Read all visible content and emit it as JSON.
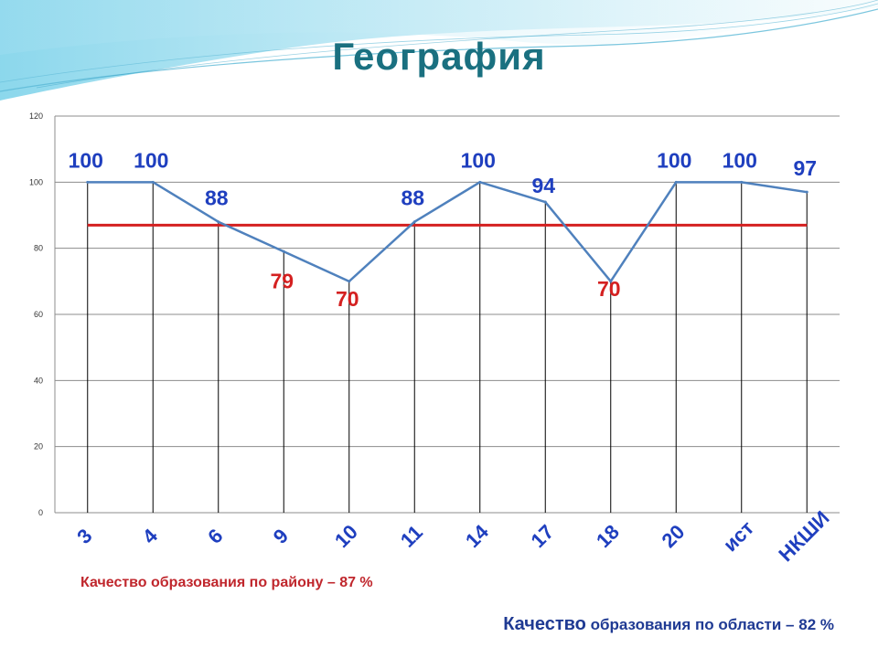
{
  "slide": {
    "title": "География",
    "title_color": "#1a7080",
    "note_district": "Качество образования по району – 87 %",
    "note_region_word": "Качество",
    "note_region_rest": " образования по области – 82 %"
  },
  "chart_data": {
    "type": "line",
    "categories": [
      "3",
      "4",
      "6",
      "9",
      "10",
      "11",
      "14",
      "17",
      "18",
      "20",
      "ист",
      "НКШИ"
    ],
    "series": [
      {
        "values": [
          100,
          100,
          88,
          79,
          70,
          88,
          100,
          94,
          70,
          100,
          100,
          97
        ],
        "color": "#4f81bd"
      }
    ],
    "data_labels": [
      "100",
      "100",
      "88",
      "79",
      "70",
      "88",
      "100",
      "94",
      "70",
      "100",
      "100",
      "97"
    ],
    "label_colors": [
      "#1f3fbf",
      "#1f3fbf",
      "#1f3fbf",
      "#d42020",
      "#d42020",
      "#1f3fbf",
      "#1f3fbf",
      "#1f3fbf",
      "#d42020",
      "#1f3fbf",
      "#1f3fbf",
      "#1f3fbf"
    ],
    "reference_line": {
      "value": 87,
      "color": "#d42020"
    },
    "ylim": [
      0,
      120
    ],
    "yticks": [
      0,
      20,
      40,
      60,
      80,
      100,
      120
    ],
    "xtick_color": "#1f3fbf",
    "grid": true,
    "drop_lines": true,
    "legend": "none"
  }
}
